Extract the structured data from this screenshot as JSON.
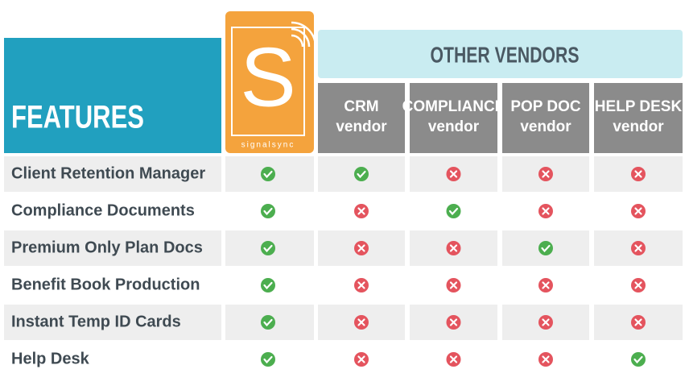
{
  "features_header": "FEATURES",
  "logo": {
    "letter": "S",
    "name": "signalsync"
  },
  "vendors_header": "OTHER VENDORS",
  "vendors": [
    {
      "name": "CRM",
      "sub": "vendor"
    },
    {
      "name": "COMPLIANCE",
      "sub": "vendor"
    },
    {
      "name": "POP DOC",
      "sub": "vendor"
    },
    {
      "name": "HELP DESK",
      "sub": "vendor"
    }
  ],
  "rows": [
    {
      "feature": "Client Retention Manager",
      "signalsync": true,
      "vendors": [
        true,
        false,
        false,
        false
      ]
    },
    {
      "feature": "Compliance Documents",
      "signalsync": true,
      "vendors": [
        false,
        true,
        false,
        false
      ]
    },
    {
      "feature": "Premium Only Plan Docs",
      "signalsync": true,
      "vendors": [
        false,
        false,
        true,
        false
      ]
    },
    {
      "feature": "Benefit Book Production",
      "signalsync": true,
      "vendors": [
        false,
        false,
        false,
        false
      ]
    },
    {
      "feature": "Instant Temp ID Cards",
      "signalsync": true,
      "vendors": [
        false,
        false,
        false,
        false
      ]
    },
    {
      "feature": "Help Desk",
      "signalsync": true,
      "vendors": [
        false,
        false,
        false,
        true
      ]
    }
  ]
}
